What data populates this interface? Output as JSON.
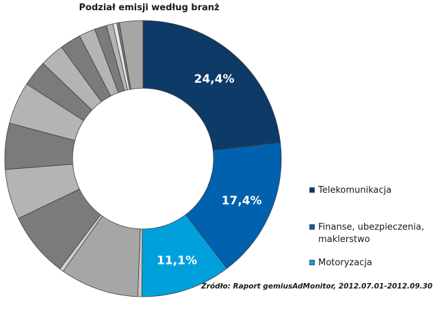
{
  "chart_data": {
    "type": "pie",
    "variant": "donut",
    "title": "Podział emisji według branż",
    "slices": [
      {
        "name": "Telekomunikacja",
        "value": 24.4,
        "label": "24,4%",
        "color": "#0d3a66",
        "in_legend": true
      },
      {
        "name": "Finanse, ubezpieczenia, maklerstwo",
        "value": 17.4,
        "label": "17,4%",
        "color": "#0061ae",
        "in_legend": true
      },
      {
        "name": "Motoryzacja",
        "value": 11.1,
        "label": "11,1%",
        "color": "#00a0dd",
        "in_legend": true
      },
      {
        "name": "",
        "value": 0.5,
        "label": "",
        "color": "#c8c8c8",
        "in_legend": false
      },
      {
        "name": "",
        "value": 9.7,
        "label": "",
        "color": "#a6a6a6",
        "in_legend": false
      },
      {
        "name": "",
        "value": 0.5,
        "label": "",
        "color": "#cfcfcf",
        "in_legend": false
      },
      {
        "name": "",
        "value": 8.0,
        "label": "",
        "color": "#7b7b7b",
        "in_legend": false
      },
      {
        "name": "",
        "value": 6.2,
        "label": "",
        "color": "#b4b4b4",
        "in_legend": false
      },
      {
        "name": "",
        "value": 5.7,
        "label": "",
        "color": "#7b7b7b",
        "in_legend": false
      },
      {
        "name": "",
        "value": 5.2,
        "label": "",
        "color": "#b4b4b4",
        "in_legend": false
      },
      {
        "name": "",
        "value": 3.2,
        "label": "",
        "color": "#7b7b7b",
        "in_legend": false
      },
      {
        "name": "",
        "value": 3.0,
        "label": "",
        "color": "#b4b4b4",
        "in_legend": false
      },
      {
        "name": "",
        "value": 2.6,
        "label": "",
        "color": "#7b7b7b",
        "in_legend": false
      },
      {
        "name": "",
        "value": 2.0,
        "label": "",
        "color": "#b4b4b4",
        "in_legend": false
      },
      {
        "name": "",
        "value": 1.5,
        "label": "",
        "color": "#7b7b7b",
        "in_legend": false
      },
      {
        "name": "",
        "value": 0.8,
        "label": "",
        "color": "#b4b4b4",
        "in_legend": false
      },
      {
        "name": "",
        "value": 0.5,
        "label": "",
        "color": "#e6e6e6",
        "in_legend": false
      },
      {
        "name": "",
        "value": 0.3,
        "label": "",
        "color": "#7b7b7b",
        "in_legend": false
      },
      {
        "name": "",
        "value": 2.9,
        "label": "",
        "color": "#a6a6a6",
        "in_legend": false
      }
    ],
    "start_angle_deg": 0,
    "direction": "clockwise",
    "legend_position": "right",
    "source": "Źródło: Raport gemiusAdMonitor, 2012.07.01-2012.09.30"
  }
}
